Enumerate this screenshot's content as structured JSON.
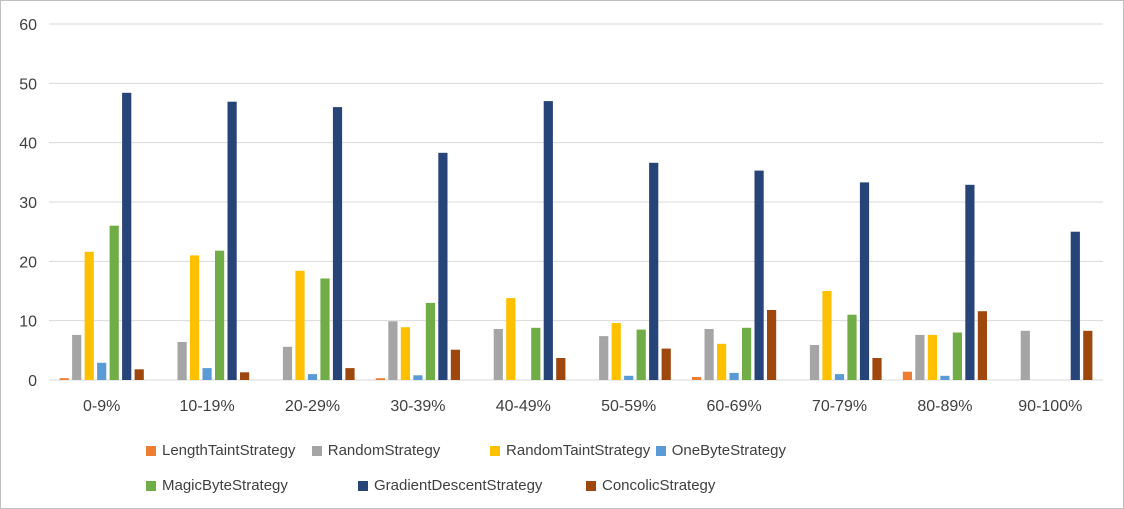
{
  "chart_data": {
    "type": "bar",
    "categories": [
      "0-9%",
      "10-19%",
      "20-29%",
      "30-39%",
      "40-49%",
      "50-59%",
      "60-69%",
      "70-79%",
      "80-89%",
      "90-100%"
    ],
    "ylim": [
      0,
      60
    ],
    "yticks": [
      0,
      10,
      20,
      30,
      40,
      50,
      60
    ],
    "grid": true,
    "legend_position": "bottom",
    "series": [
      {
        "name": "LengthTaintStrategy",
        "color": "#ED7D31",
        "values": [
          0.3,
          0,
          0,
          0.3,
          0,
          0,
          0.5,
          0,
          1.4,
          0
        ]
      },
      {
        "name": "RandomStrategy",
        "color": "#A5A5A5",
        "values": [
          7.6,
          6.4,
          5.6,
          9.9,
          8.6,
          7.4,
          8.6,
          5.9,
          7.6,
          8.3
        ]
      },
      {
        "name": "RandomTaintStrategy",
        "color": "#FFC000",
        "values": [
          21.6,
          21.0,
          18.4,
          8.9,
          13.8,
          9.6,
          6.1,
          15.0,
          7.6,
          0
        ]
      },
      {
        "name": "OneByteStrategy",
        "color": "#5B9BD5",
        "values": [
          2.9,
          2.0,
          1.0,
          0.8,
          0,
          0.7,
          1.2,
          1.0,
          0.7,
          0
        ]
      },
      {
        "name": "MagicByteStrategy",
        "color": "#70AD47",
        "values": [
          26.0,
          21.8,
          17.1,
          13.0,
          8.8,
          8.5,
          8.8,
          11.0,
          8.0,
          0
        ]
      },
      {
        "name": "GradientDescentStrategy",
        "color": "#264478",
        "values": [
          48.4,
          46.9,
          46.0,
          38.3,
          47.0,
          36.6,
          35.3,
          33.3,
          32.9,
          25.0
        ]
      },
      {
        "name": "ConcolicStrategy",
        "color": "#9E480E",
        "values": [
          1.8,
          1.3,
          2.0,
          5.1,
          3.7,
          5.3,
          11.8,
          3.7,
          11.6,
          8.3
        ]
      }
    ]
  }
}
